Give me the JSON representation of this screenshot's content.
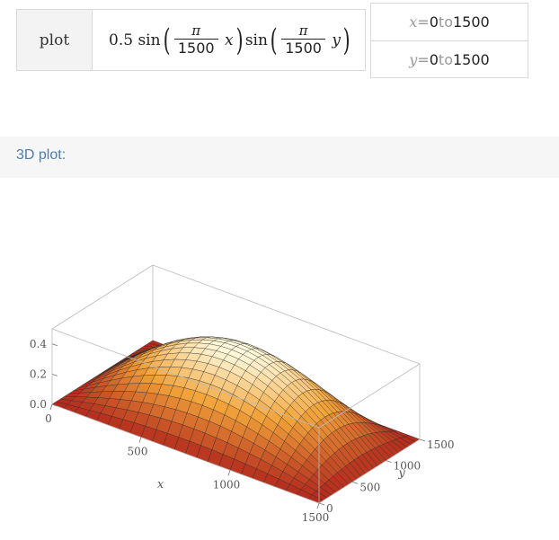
{
  "input": {
    "command": "plot",
    "coef": "0.5",
    "fn": "sin",
    "pi": "π",
    "denominator": "1500",
    "var_x": "x",
    "var_y": "y"
  },
  "ranges": [
    {
      "var": "x",
      "eq": " = ",
      "from": "0",
      "to_word": " to ",
      "to": "1500"
    },
    {
      "var": "y",
      "eq": " = ",
      "from": "0",
      "to_word": " to ",
      "to": "1500"
    }
  ],
  "pod": {
    "title": "3D plot:"
  },
  "plot3d": {
    "z_ticks": [
      "0.0",
      "0.2",
      "0.4"
    ],
    "x_ticks": [
      "0",
      "500",
      "1000",
      "1500"
    ],
    "y_ticks": [
      "0",
      "500",
      "1000",
      "1500"
    ],
    "xlabel": "x",
    "ylabel": "y"
  },
  "chart_data": {
    "type": "surface",
    "function": "0.5 sin(π/1500 x) sin(π/1500 y)",
    "xlim": [
      0,
      1500
    ],
    "ylim": [
      0,
      1500
    ],
    "zlim": [
      0,
      0.5
    ],
    "z_max": 0.5,
    "grid": true,
    "colors": {
      "low": "#b32a1d",
      "mid": "#f2a43a",
      "high": "#fffbe0",
      "mesh": "#222222",
      "box": "#bbbbbb"
    }
  }
}
